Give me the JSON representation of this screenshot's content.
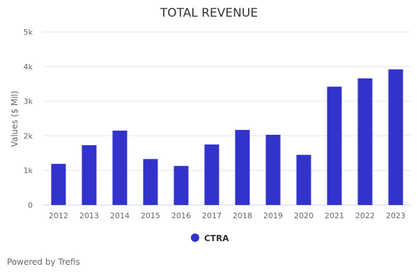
{
  "chart_data": {
    "type": "bar",
    "title": "TOTAL REVENUE",
    "xlabel": "",
    "ylabel": "Values ($ Mil)",
    "categories": [
      "2012",
      "2013",
      "2014",
      "2015",
      "2016",
      "2017",
      "2018",
      "2019",
      "2020",
      "2021",
      "2022",
      "2023"
    ],
    "series": [
      {
        "name": "CTRA",
        "color": "#3333cc",
        "values": [
          1190,
          1730,
          2150,
          1330,
          1130,
          1750,
          2170,
          2030,
          1450,
          3420,
          3660,
          3920
        ]
      }
    ],
    "ylim": [
      0,
      5000
    ],
    "yticks": [
      0,
      1000,
      2000,
      3000,
      4000,
      5000
    ],
    "ytick_labels": [
      "0",
      "1k",
      "2k",
      "3k",
      "4k",
      "5k"
    ],
    "grid": true,
    "legend": "bottom-center"
  },
  "credit": "Powered by Trefis"
}
